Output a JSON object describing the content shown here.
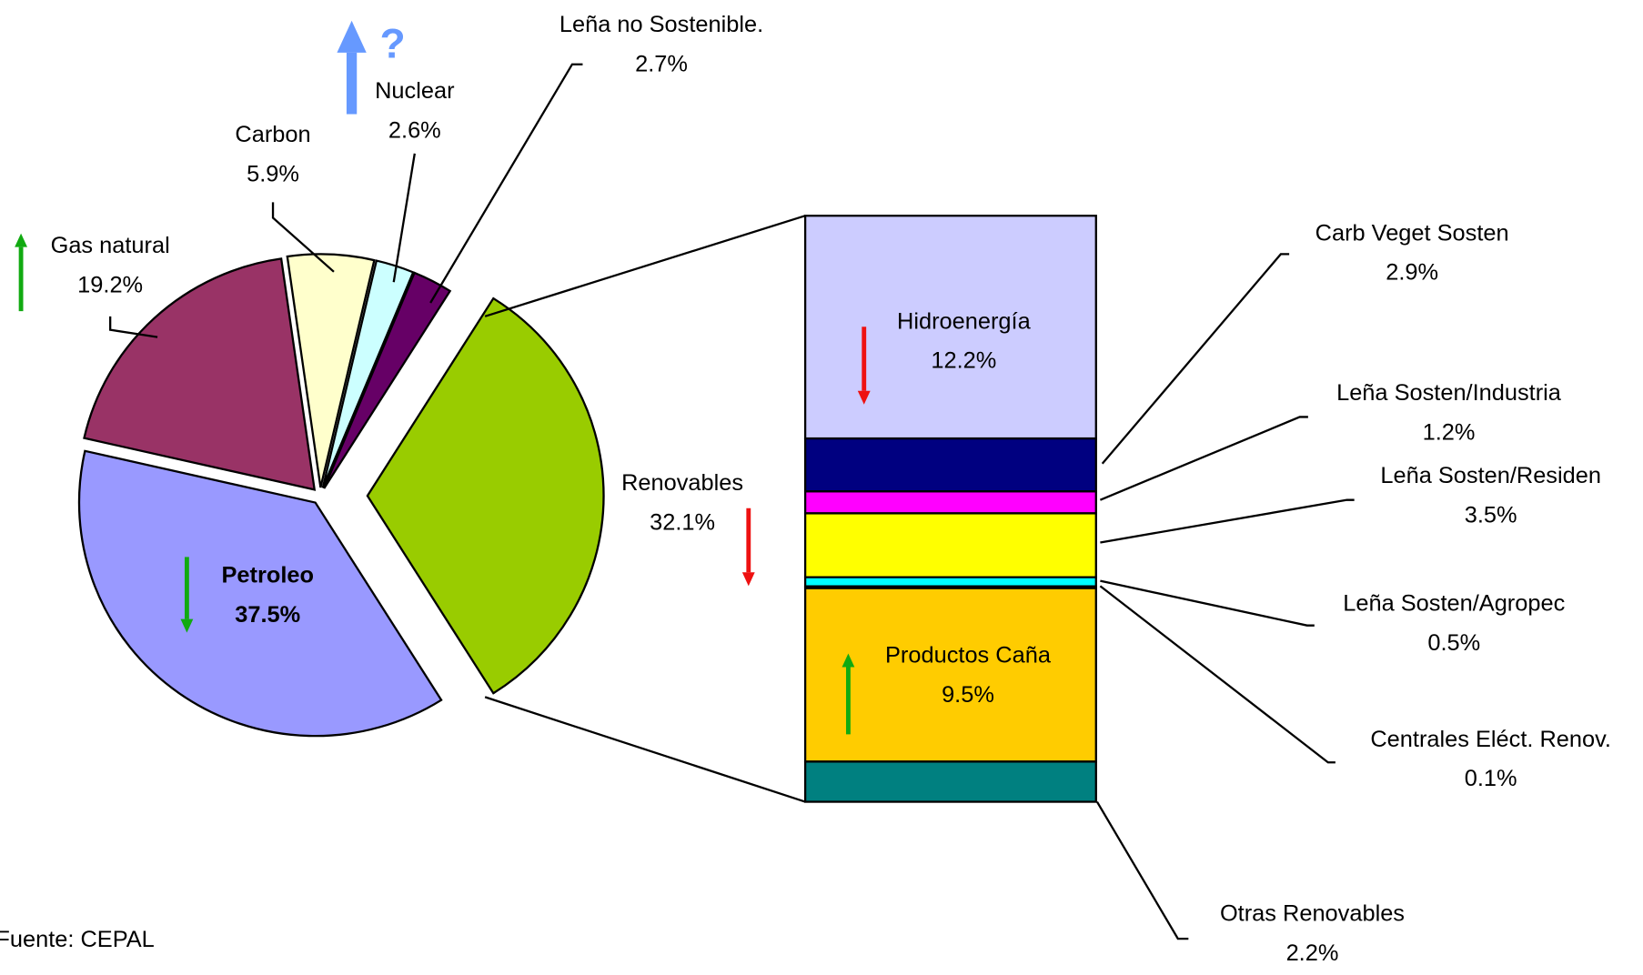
{
  "chart_data": {
    "type": "pie-of-bar",
    "categories": [
      "Renovables",
      "Petroleo",
      "Gas natural",
      "Carbon",
      "Nuclear",
      "Leña no Sostenible."
    ],
    "values": [
      32.1,
      37.5,
      19.2,
      5.9,
      2.6,
      2.7
    ],
    "value_labels": [
      "32.1%",
      "37.5%",
      "19.2%",
      "5.9%",
      "2.6%",
      "2.7%"
    ],
    "colors": [
      "#99cc00",
      "#9999ff",
      "#993366",
      "#ffffcc",
      "#ccffff",
      "#660066"
    ],
    "trend": [
      "down",
      "down",
      "up",
      null,
      "up",
      null
    ],
    "annotations": [
      "?"
    ],
    "breakdown": {
      "type": "bar",
      "categories": [
        "Hidroenergía",
        "Carb Veget Sosten",
        "Leña Sosten/Industria",
        "Leña Sosten/Residen",
        "Leña Sosten/Agropec",
        "Centrales Eléct. Renov.",
        "Productos Caña",
        "Otras Renovables"
      ],
      "values": [
        12.2,
        2.9,
        1.2,
        3.5,
        0.5,
        0.1,
        9.5,
        2.2
      ],
      "value_labels": [
        "12.2%",
        "2.9%",
        "1.2%",
        "3.5%",
        "0.5%",
        "0.1%",
        "9.5%",
        "2.2%"
      ],
      "colors": [
        "#ccccff",
        "#000080",
        "#ff00ff",
        "#ffff00",
        "#00ffff",
        "#0000ff",
        "#ffcc00",
        "#008080"
      ],
      "trend": [
        "down",
        null,
        null,
        null,
        null,
        null,
        "up",
        null
      ]
    },
    "note": "Fuente: CEPAL"
  }
}
